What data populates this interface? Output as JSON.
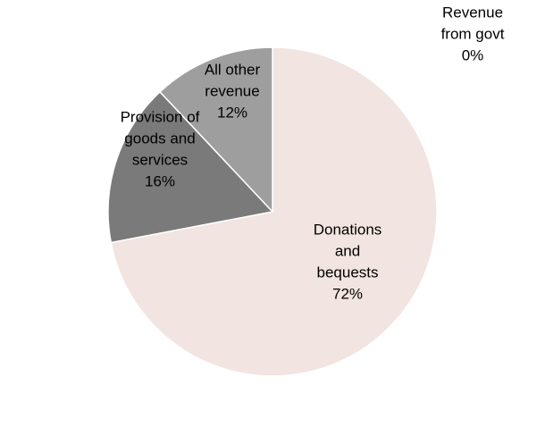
{
  "chart_data": {
    "type": "pie",
    "start_angle": "12 o'clock",
    "direction": "clockwise",
    "slices": [
      {
        "name": "Donations and bequests",
        "value": 72,
        "label_lines": [
          "Donations",
          "and",
          "bequests",
          "72%"
        ],
        "color": "#F2E4E0"
      },
      {
        "name": "Provision of goods and services",
        "value": 16,
        "label_lines": [
          "Provision of",
          "goods and",
          "services",
          "16%"
        ],
        "color": "#7A7A7A"
      },
      {
        "name": "All other revenue",
        "value": 12,
        "label_lines": [
          "All other",
          "revenue",
          "12%"
        ],
        "color": "#9E9E9E"
      },
      {
        "name": "Revenue from govt",
        "value": 0,
        "label_lines": [
          "Revenue",
          "from govt",
          "0%"
        ],
        "color": "#D9D9D9"
      }
    ]
  }
}
